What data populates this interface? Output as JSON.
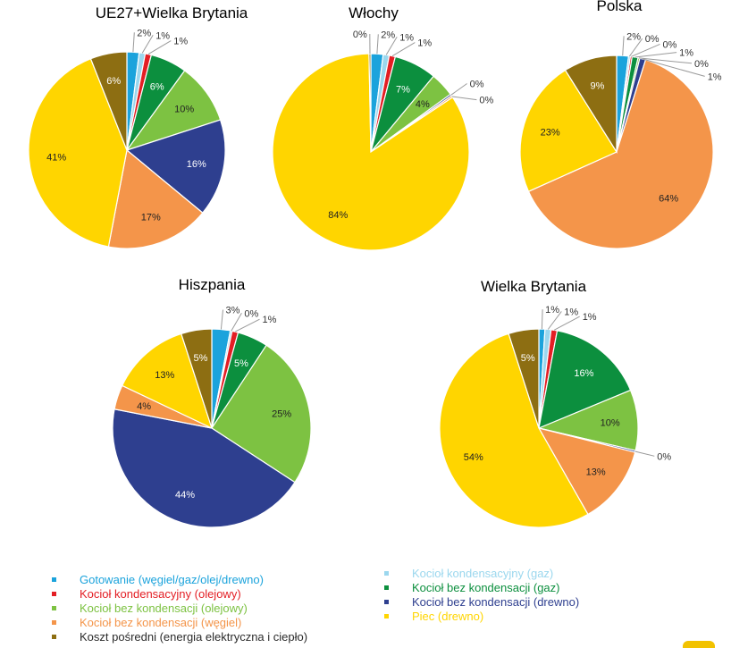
{
  "legend": [
    {
      "key": "gotowanie",
      "label": "Gotowanie (węgiel/gaz/olej/drewno)",
      "color": "#1BA3DC"
    },
    {
      "key": "olej_kond",
      "label": "Kocioł kondensacyjny (olejowy)",
      "color": "#E31E24"
    },
    {
      "key": "olej_bez",
      "label": "Kocioł bez kondensacji (olejowy)",
      "color": "#7DC242"
    },
    {
      "key": "wegiel_bez",
      "label": "Kocioł bez kondensacji (węgiel)",
      "color": "#F4954A"
    },
    {
      "key": "posredni",
      "label": "Koszt pośredni (energia elektryczna i ciepło)",
      "color": "#8D6E12"
    },
    {
      "key": "gaz_kond",
      "label": "Kocioł kondensacyjny (gaz)",
      "color": "#9BD7EE"
    },
    {
      "key": "gaz_bez",
      "label": "Kocioł bez kondensacji (gaz)",
      "color": "#0C8F3E"
    },
    {
      "key": "drewno_bez",
      "label": "Kocioł bez kondensacji (drewno)",
      "color": "#2E3F8F"
    },
    {
      "key": "piec",
      "label": "Piec (drewno)",
      "color": "#FFD500"
    }
  ],
  "legend_text_colors": {
    "gotowanie": "#1BA3DC",
    "olej_kond": "#E31E24",
    "olej_bez": "#7DC242",
    "wegiel_bez": "#F4954A",
    "posredni": "#2b2b2b",
    "gaz_kond": "#9BD7EE",
    "gaz_bez": "#0C8F3E",
    "drewno_bez": "#2E3F8F",
    "piec": "#FFD500"
  },
  "chart_data": [
    {
      "type": "pie",
      "title": "UE27+Wielka Brytania",
      "slices": [
        {
          "key": "gotowanie",
          "value": 2,
          "label": "2%"
        },
        {
          "key": "gaz_kond",
          "value": 1,
          "label": "1%"
        },
        {
          "key": "olej_kond",
          "value": 1,
          "label": "1%"
        },
        {
          "key": "gaz_bez",
          "value": 6,
          "label": "6%"
        },
        {
          "key": "olej_bez",
          "value": 10,
          "label": "10%"
        },
        {
          "key": "drewno_bez",
          "value": 16,
          "label": "16%"
        },
        {
          "key": "wegiel_bez",
          "value": 17,
          "label": "17%"
        },
        {
          "key": "piec",
          "value": 41,
          "label": "41%"
        },
        {
          "key": "posredni",
          "value": 6,
          "label": "6%"
        }
      ]
    },
    {
      "type": "pie",
      "title": "Włochy",
      "slices": [
        {
          "key": "gotowanie",
          "value": 2,
          "label": "2%"
        },
        {
          "key": "gaz_kond",
          "value": 1,
          "label": "1%"
        },
        {
          "key": "olej_kond",
          "value": 1,
          "label": "1%"
        },
        {
          "key": "gaz_bez",
          "value": 7,
          "label": "7%"
        },
        {
          "key": "olej_bez",
          "value": 4,
          "label": "4%"
        },
        {
          "key": "drewno_bez",
          "value": 0.3,
          "label": "0%"
        },
        {
          "key": "wegiel_bez",
          "value": 0.3,
          "label": "0%"
        },
        {
          "key": "piec",
          "value": 84,
          "label": "84%"
        },
        {
          "key": "posredni",
          "value": 0.3,
          "label": "0%"
        }
      ]
    },
    {
      "type": "pie",
      "title": "Polska",
      "slices": [
        {
          "key": "gotowanie",
          "value": 2,
          "label": "2%"
        },
        {
          "key": "gaz_kond",
          "value": 0.3,
          "label": "0%"
        },
        {
          "key": "olej_kond",
          "value": 0.3,
          "label": "0%"
        },
        {
          "key": "gaz_bez",
          "value": 1,
          "label": "1%"
        },
        {
          "key": "olej_bez",
          "value": 0.3,
          "label": "0%"
        },
        {
          "key": "drewno_bez",
          "value": 1,
          "label": "1%"
        },
        {
          "key": "wegiel_bez",
          "value": 64,
          "label": "64%"
        },
        {
          "key": "piec",
          "value": 23,
          "label": "23%"
        },
        {
          "key": "posredni",
          "value": 9,
          "label": "9%"
        }
      ]
    },
    {
      "type": "pie",
      "title": "Hiszpania",
      "slices": [
        {
          "key": "gotowanie",
          "value": 3,
          "label": "3%"
        },
        {
          "key": "gaz_kond",
          "value": 0.3,
          "label": "0%"
        },
        {
          "key": "olej_kond",
          "value": 1,
          "label": "1%"
        },
        {
          "key": "gaz_bez",
          "value": 5,
          "label": "5%"
        },
        {
          "key": "olej_bez",
          "value": 25,
          "label": "25%"
        },
        {
          "key": "drewno_bez",
          "value": 44,
          "label": "44%"
        },
        {
          "key": "wegiel_bez",
          "value": 4,
          "label": "4%"
        },
        {
          "key": "piec",
          "value": 13,
          "label": "13%"
        },
        {
          "key": "posredni",
          "value": 5,
          "label": "5%"
        }
      ]
    },
    {
      "type": "pie",
      "title": "Wielka Brytania",
      "slices": [
        {
          "key": "gotowanie",
          "value": 1,
          "label": "1%"
        },
        {
          "key": "gaz_kond",
          "value": 1,
          "label": "1%"
        },
        {
          "key": "olej_kond",
          "value": 1,
          "label": "1%"
        },
        {
          "key": "gaz_bez",
          "value": 16,
          "label": "16%"
        },
        {
          "key": "olej_bez",
          "value": 10,
          "label": "10%"
        },
        {
          "key": "drewno_bez",
          "value": 0.3,
          "label": "0%"
        },
        {
          "key": "wegiel_bez",
          "value": 13,
          "label": "13%"
        },
        {
          "key": "piec",
          "value": 54,
          "label": "54%"
        },
        {
          "key": "posredni",
          "value": 5,
          "label": "5%"
        }
      ]
    }
  ]
}
